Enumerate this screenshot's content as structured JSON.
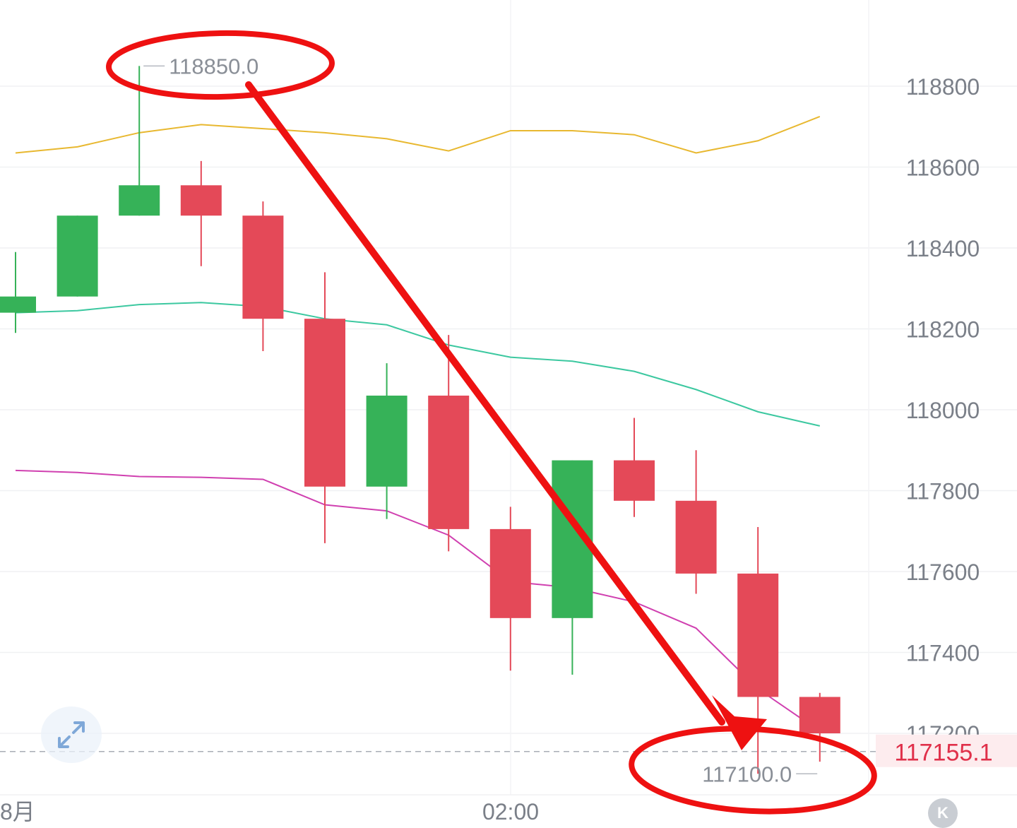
{
  "chart_data": {
    "type": "candlestick",
    "y_axis": {
      "ticks": [
        118800,
        118600,
        118400,
        118200,
        118000,
        117800,
        117600,
        117400,
        117200
      ],
      "range": [
        117020,
        119000
      ],
      "position": "right"
    },
    "x_axis": {
      "tick_labels": [
        "8月",
        "02:00"
      ]
    },
    "grid": true,
    "candles": [
      {
        "open": 118240,
        "close": 118280,
        "high": 118390,
        "low": 118190
      },
      {
        "open": 118280,
        "close": 118480,
        "high": 118480,
        "low": 118280
      },
      {
        "open": 118480,
        "close": 118555,
        "high": 118850,
        "low": 118480
      },
      {
        "open": 118555,
        "close": 118480,
        "high": 118615,
        "low": 118355
      },
      {
        "open": 118480,
        "close": 118225,
        "high": 118515,
        "low": 118145
      },
      {
        "open": 118225,
        "close": 117810,
        "high": 118340,
        "low": 117670
      },
      {
        "open": 117810,
        "close": 118035,
        "high": 118115,
        "low": 117730
      },
      {
        "open": 118035,
        "close": 117705,
        "high": 118185,
        "low": 117650
      },
      {
        "open": 117705,
        "close": 117485,
        "high": 117760,
        "low": 117355
      },
      {
        "open": 117485,
        "close": 117875,
        "high": 117875,
        "low": 117345
      },
      {
        "open": 117875,
        "close": 117775,
        "high": 117980,
        "low": 117735
      },
      {
        "open": 117775,
        "close": 117595,
        "high": 117900,
        "low": 117545
      },
      {
        "open": 117595,
        "close": 117290,
        "high": 117710,
        "low": 117100
      },
      {
        "open": 117290,
        "close": 117200,
        "high": 117300,
        "low": 117130
      }
    ],
    "lines": [
      {
        "color": "#e8b830",
        "values": [
          118635,
          118650,
          118685,
          118705,
          118695,
          118685,
          118670,
          118640,
          118690,
          118690,
          118680,
          118635,
          118665,
          118725
        ]
      },
      {
        "color": "#3cc8a0",
        "values": [
          118240,
          118245,
          118260,
          118265,
          118255,
          118225,
          118210,
          118160,
          118130,
          118120,
          118095,
          118050,
          117995,
          117960
        ]
      },
      {
        "color": "#d040b0",
        "values": [
          117850,
          117845,
          117835,
          117833,
          117828,
          117765,
          117750,
          117690,
          117575,
          117560,
          117525,
          117460,
          117310,
          117205
        ]
      }
    ],
    "annotations": {
      "high_label": "118850.0",
      "low_label": "117100.0",
      "current_price": 117155.1,
      "current_price_label": "117155.1"
    },
    "colors": {
      "up": "#36b258",
      "down": "#e44958",
      "circle": "#ee1111",
      "price_tag_bg": "#fdecee",
      "price_tag_text": "#e0304a"
    }
  },
  "icons": {
    "expand": "expand-arrows-icon",
    "k": "k-toggle-icon"
  },
  "k_button_label": "K"
}
